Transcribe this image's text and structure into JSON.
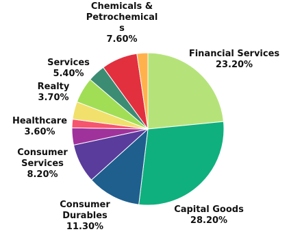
{
  "chart_data": {
    "type": "pie",
    "title": "",
    "legend": "none",
    "slices": [
      {
        "name": "Financial Services",
        "value": 23.2,
        "label": "23.20%",
        "color": "#b5e37a"
      },
      {
        "name": "Capital Goods",
        "value": 28.2,
        "label": "28.20%",
        "color": "#0fb07e"
      },
      {
        "name": "Consumer Durables",
        "value": 11.3,
        "label": "11.30%",
        "color": "#1e5f8e"
      },
      {
        "name": "Consumer Services",
        "value": 8.2,
        "label": "8.20%",
        "color": "#5a3c9c"
      },
      {
        "name": "Healthcare",
        "value": 3.6,
        "label": "3.60%",
        "color": "#a0329c"
      },
      {
        "name": "",
        "value": 1.8,
        "label": "",
        "color": "#f5556e"
      },
      {
        "name": "Realty",
        "value": 3.7,
        "label": "3.70%",
        "color": "#f1e06b"
      },
      {
        "name": "Services",
        "value": 5.4,
        "label": "5.40%",
        "color": "#a1de55"
      },
      {
        "name": "",
        "value": 3.7,
        "label": "",
        "color": "#3c8c74"
      },
      {
        "name": "Chemicals & Petrochemicals",
        "value": 7.6,
        "label": "7.60%",
        "color": "#e2303f"
      },
      {
        "name": "",
        "value": 2.3,
        "label": "",
        "color": "#ffb24c"
      }
    ],
    "label_lines": [
      {
        "slice": 0,
        "lines": [
          "Financial Services",
          "23.20%"
        ]
      },
      {
        "slice": 1,
        "lines": [
          "Capital Goods",
          "28.20%"
        ]
      },
      {
        "slice": 2,
        "lines": [
          "Consumer",
          "Durables",
          "11.30%"
        ]
      },
      {
        "slice": 3,
        "lines": [
          "Consumer",
          "Services",
          "8.20%"
        ]
      },
      {
        "slice": 4,
        "lines": [
          "Healthcare",
          "3.60%"
        ]
      },
      {
        "slice": 6,
        "lines": [
          "Realty",
          "3.70%"
        ]
      },
      {
        "slice": 7,
        "lines": [
          "Services",
          "5.40%"
        ]
      },
      {
        "slice": 9,
        "lines": [
          "Chemicals &",
          "Petrochemical",
          "s",
          "7.60%"
        ]
      }
    ]
  }
}
